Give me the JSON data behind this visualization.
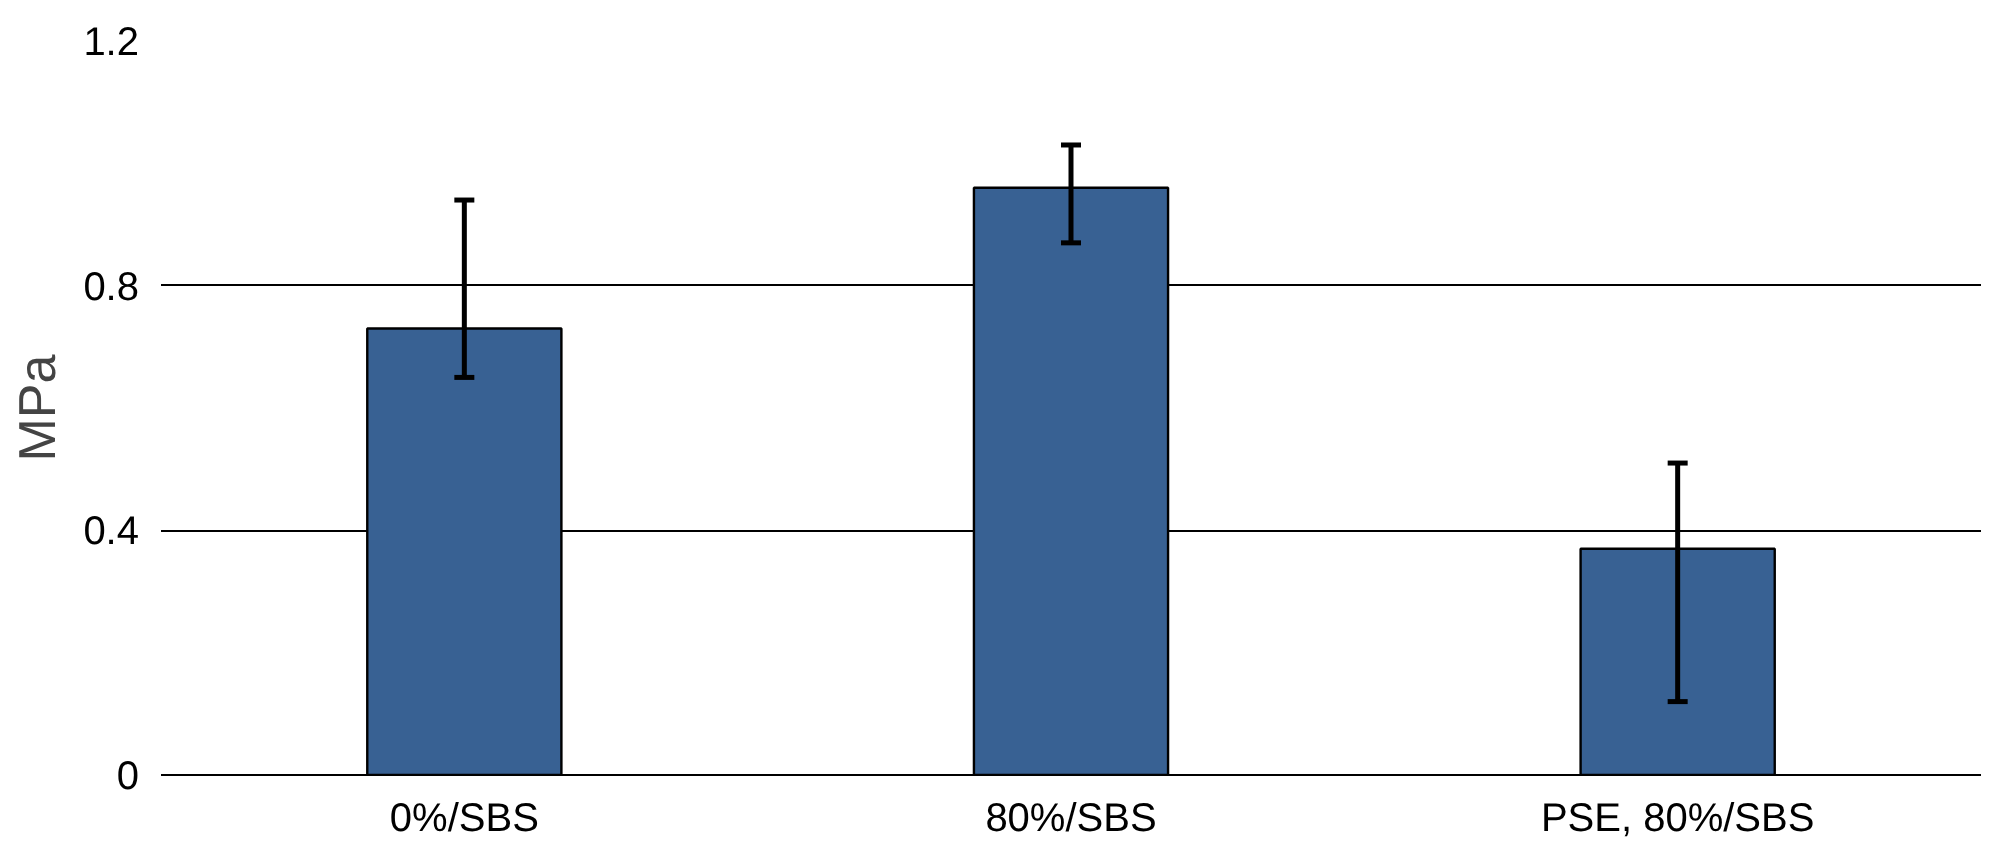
{
  "chart_data": {
    "type": "bar",
    "ylabel": "MPa",
    "categories": [
      "0%/SBS",
      "80%/SBS",
      "PSE, 80%/SBS"
    ],
    "values": [
      0.73,
      0.96,
      0.37
    ],
    "errors": [
      [
        0.65,
        0.94
      ],
      [
        0.87,
        1.03
      ],
      [
        0.12,
        0.51
      ]
    ],
    "color": "#386193",
    "ylim": [
      0,
      1.2
    ],
    "yticks": [
      0,
      0.4,
      0.8,
      1.2
    ],
    "grid": "y"
  }
}
